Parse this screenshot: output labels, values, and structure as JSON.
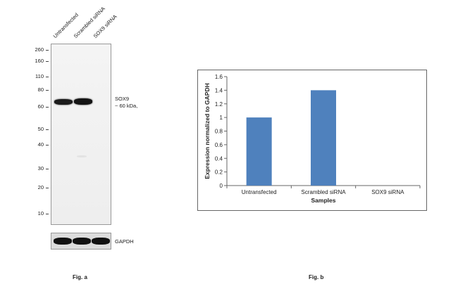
{
  "fig_a": {
    "caption": "Fig. a",
    "lanes": [
      "Untransfected",
      "Scrambled siRNA",
      "SOX9 siRNA"
    ],
    "mw_markers": [
      "260",
      "160",
      "110",
      "80",
      "60",
      "50",
      "40",
      "30",
      "20",
      "10"
    ],
    "target_label": "SOX9",
    "target_size": "~ 60 kDa,",
    "loading_control": "GAPDH"
  },
  "fig_b": {
    "caption": "Fig. b"
  },
  "colors": {
    "bar": "#4f81bd",
    "band": "#1c1c1c"
  },
  "chart_data": {
    "type": "bar",
    "categories": [
      "Untransfected",
      "Scrambled siRNA",
      "SOX9 siRNA"
    ],
    "values": [
      1.0,
      1.4,
      0.0
    ],
    "xlabel": "Samples",
    "ylabel": "Expression normalized to GAPDH",
    "ylim": [
      0,
      1.6
    ],
    "yticks": [
      "0",
      "0.2",
      "0.4",
      "0.6",
      "0.8",
      "1",
      "1.2",
      "1.4",
      "1.6"
    ],
    "grid": false,
    "legend": "none"
  }
}
